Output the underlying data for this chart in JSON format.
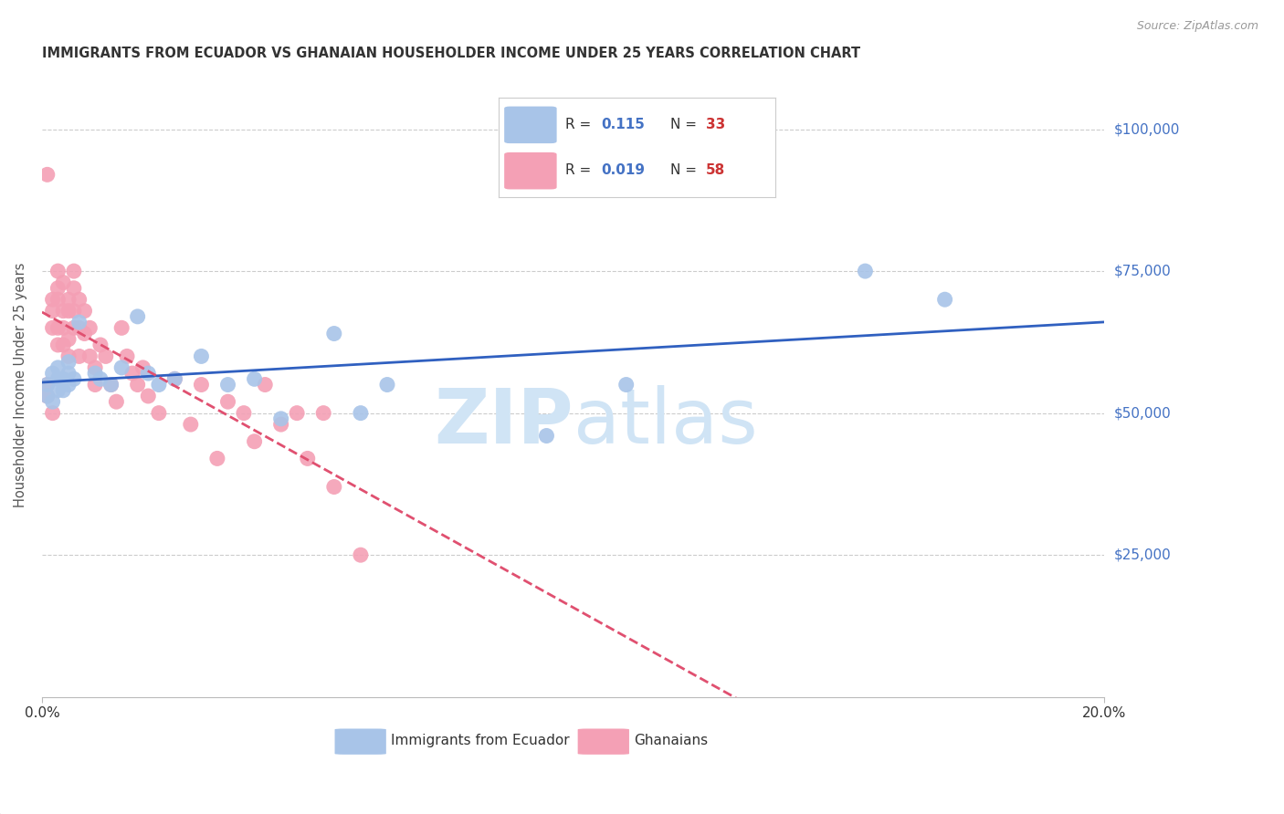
{
  "title": "IMMIGRANTS FROM ECUADOR VS GHANAIAN HOUSEHOLDER INCOME UNDER 25 YEARS CORRELATION CHART",
  "source": "Source: ZipAtlas.com",
  "ylabel": "Householder Income Under 25 years",
  "ytick_labels": [
    "$25,000",
    "$50,000",
    "$75,000",
    "$100,000"
  ],
  "ytick_values": [
    25000,
    50000,
    75000,
    100000
  ],
  "xmin": 0.0,
  "xmax": 0.2,
  "ymin": 0,
  "ymax": 110000,
  "legend_r_ecuador": "0.115",
  "legend_n_ecuador": "33",
  "legend_r_ghanaian": "0.019",
  "legend_n_ghanaian": "58",
  "ecuador_label": "Immigrants from Ecuador",
  "ghanaian_label": "Ghanaians",
  "ecuador_color": "#a8c4e8",
  "ghanaian_color": "#f4a0b5",
  "ecuador_line_color": "#3060c0",
  "ghanaian_line_color": "#e05070",
  "background_color": "#ffffff",
  "grid_color": "#cccccc",
  "title_color": "#333333",
  "source_color": "#999999",
  "watermark_color": "#d0e4f5",
  "ecuador_x": [
    0.001,
    0.001,
    0.002,
    0.002,
    0.003,
    0.003,
    0.003,
    0.004,
    0.004,
    0.005,
    0.005,
    0.005,
    0.006,
    0.007,
    0.01,
    0.011,
    0.013,
    0.015,
    0.018,
    0.02,
    0.022,
    0.025,
    0.03,
    0.035,
    0.04,
    0.045,
    0.055,
    0.06,
    0.065,
    0.095,
    0.11,
    0.155,
    0.17
  ],
  "ecuador_y": [
    55000,
    53000,
    57000,
    52000,
    56000,
    54000,
    58000,
    56000,
    54000,
    57000,
    55000,
    59000,
    56000,
    66000,
    57000,
    56000,
    55000,
    58000,
    67000,
    57000,
    55000,
    56000,
    60000,
    55000,
    56000,
    49000,
    64000,
    50000,
    55000,
    46000,
    55000,
    75000,
    70000
  ],
  "ghanaian_x": [
    0.001,
    0.001,
    0.001,
    0.002,
    0.002,
    0.002,
    0.002,
    0.003,
    0.003,
    0.003,
    0.003,
    0.003,
    0.004,
    0.004,
    0.004,
    0.004,
    0.005,
    0.005,
    0.005,
    0.005,
    0.006,
    0.006,
    0.006,
    0.006,
    0.007,
    0.007,
    0.007,
    0.008,
    0.008,
    0.009,
    0.009,
    0.01,
    0.01,
    0.011,
    0.012,
    0.013,
    0.014,
    0.015,
    0.016,
    0.017,
    0.018,
    0.019,
    0.02,
    0.022,
    0.025,
    0.028,
    0.03,
    0.033,
    0.035,
    0.038,
    0.04,
    0.042,
    0.045,
    0.048,
    0.05,
    0.053,
    0.055,
    0.06
  ],
  "ghanaian_y": [
    55000,
    53000,
    92000,
    70000,
    68000,
    65000,
    50000,
    72000,
    70000,
    75000,
    65000,
    62000,
    73000,
    68000,
    65000,
    62000,
    70000,
    68000,
    63000,
    60000,
    72000,
    68000,
    65000,
    75000,
    70000,
    65000,
    60000,
    68000,
    64000,
    65000,
    60000,
    58000,
    55000,
    62000,
    60000,
    55000,
    52000,
    65000,
    60000,
    57000,
    55000,
    58000,
    53000,
    50000,
    56000,
    48000,
    55000,
    42000,
    52000,
    50000,
    45000,
    55000,
    48000,
    50000,
    42000,
    50000,
    37000,
    25000
  ]
}
